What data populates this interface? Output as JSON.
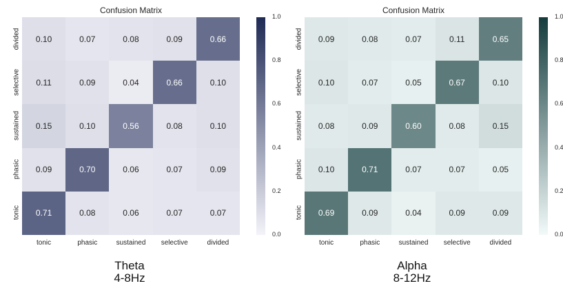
{
  "chart_data": [
    {
      "type": "heatmap",
      "title": "Confusion Matrix",
      "x_categories": [
        "tonic",
        "phasic",
        "sustained",
        "selective",
        "divided"
      ],
      "y_categories": [
        "divided",
        "selective",
        "sustained",
        "phasic",
        "tonic"
      ],
      "values": [
        [
          0.1,
          0.07,
          0.08,
          0.09,
          0.66
        ],
        [
          0.11,
          0.09,
          0.04,
          0.66,
          0.1
        ],
        [
          0.15,
          0.1,
          0.56,
          0.08,
          0.1
        ],
        [
          0.09,
          0.7,
          0.06,
          0.07,
          0.09
        ],
        [
          0.71,
          0.08,
          0.06,
          0.07,
          0.07
        ]
      ],
      "colorbar": {
        "range": [
          0.0,
          1.0
        ],
        "ticks": [
          "0.0",
          "0.2",
          "0.4",
          "0.6",
          "0.8",
          "1.0"
        ]
      },
      "color_low": "#f3f3f9",
      "color_high": "#1f2a55",
      "caption": "Theta",
      "caption_sub": "4-8Hz"
    },
    {
      "type": "heatmap",
      "title": "Confusion Matrix",
      "x_categories": [
        "tonic",
        "phasic",
        "sustained",
        "selective",
        "divided"
      ],
      "y_categories": [
        "divided",
        "selective",
        "sustained",
        "phasic",
        "tonic"
      ],
      "values": [
        [
          0.09,
          0.08,
          0.07,
          0.11,
          0.65
        ],
        [
          0.1,
          0.07,
          0.05,
          0.67,
          0.1
        ],
        [
          0.08,
          0.09,
          0.6,
          0.08,
          0.15
        ],
        [
          0.1,
          0.71,
          0.07,
          0.07,
          0.05
        ],
        [
          0.69,
          0.09,
          0.04,
          0.09,
          0.09
        ]
      ],
      "colorbar": {
        "range": [
          0.0,
          1.0
        ],
        "ticks": [
          "0.0",
          "0.2",
          "0.4",
          "0.6",
          "0.8",
          "1.0"
        ]
      },
      "color_low": "#f2f9f9",
      "color_high": "#143c3d",
      "caption": "Alpha",
      "caption_sub": "8-12Hz"
    }
  ]
}
